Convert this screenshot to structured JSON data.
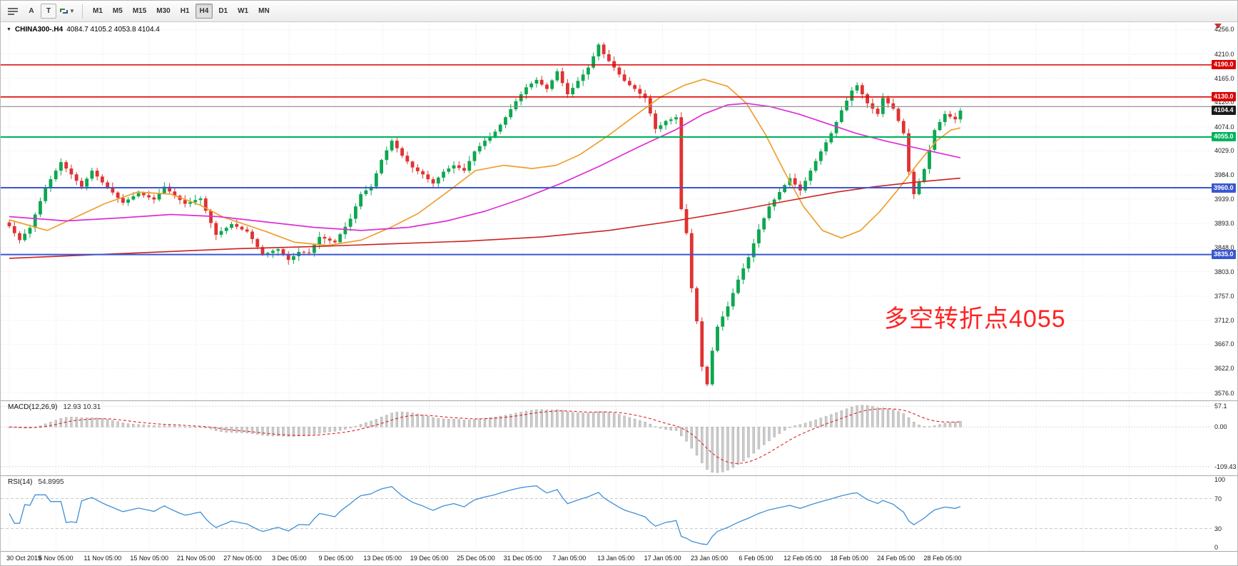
{
  "toolbar": {
    "tools": [
      {
        "label": "A"
      },
      {
        "label": "T"
      }
    ],
    "timeframes": [
      "M1",
      "M5",
      "M15",
      "M30",
      "H1",
      "H4",
      "D1",
      "W1",
      "MN"
    ],
    "active_timeframe": "H4"
  },
  "chart": {
    "symbol": "CHINA300-.H4",
    "ohlc": "4084.7 4105.2 4053.8 4104.4",
    "annotation": {
      "text": "多空转折点4055",
      "color": "#ff2222"
    },
    "price_axis": [
      "4256.0",
      "4210.0",
      "4165.0",
      "4120.0",
      "4074.0",
      "4029.0",
      "3984.0",
      "3939.0",
      "3893.0",
      "3848.0",
      "3803.0",
      "3757.0",
      "3712.0",
      "3667.0",
      "3622.0",
      "3576.0"
    ],
    "hlines": [
      {
        "price": 4190.0,
        "label": "4190.0",
        "color": "#dd0000",
        "width": 1.6
      },
      {
        "price": 4130.0,
        "label": "4130.0",
        "color": "#dd0000",
        "width": 1.6
      },
      {
        "price": 4112.0,
        "label": "",
        "color": "#8a8a8a",
        "width": 1.1
      },
      {
        "price": 4104.4,
        "label": "4104.4",
        "color": "#1a1a1a",
        "width": 0
      },
      {
        "price": 4055.0,
        "label": "4055.0",
        "color": "#00b25c",
        "width": 2.2
      },
      {
        "price": 3960.0,
        "label": "3960.0",
        "color": "#3a57d0",
        "width": 2
      },
      {
        "price": 3835.0,
        "label": "3835.0",
        "color": "#3a57d0",
        "width": 2
      }
    ]
  },
  "chart_data": {
    "type": "candlestick",
    "symbol": "CHINA300-",
    "timeframe": "H4",
    "ohlc_display": [
      4084.7,
      4105.2,
      4053.8,
      4104.4
    ],
    "ylim": [
      3576,
      4256
    ],
    "first_open": 3895,
    "closes": [
      3888,
      3875,
      3862,
      3874,
      3885,
      3910,
      3935,
      3960,
      3976,
      3992,
      4008,
      3996,
      3985,
      3973,
      3962,
      3977,
      3992,
      3981,
      3970,
      3960,
      3951,
      3941,
      3932,
      3938,
      3944,
      3950,
      3946,
      3942,
      3938,
      3950,
      3962,
      3953,
      3945,
      3937,
      3930,
      3933,
      3937,
      3940,
      3917,
      3894,
      3872,
      3879,
      3885,
      3892,
      3887,
      3882,
      3878,
      3864,
      3849,
      3835,
      3838,
      3842,
      3845,
      3835,
      3825,
      3832,
      3840,
      3839,
      3838,
      3853,
      3868,
      3865,
      3861,
      3858,
      3873,
      3887,
      3902,
      3925,
      3948,
      3955,
      3962,
      3987,
      4012,
      4030,
      4048,
      4034,
      4020,
      4009,
      3998,
      3991,
      3985,
      3976,
      3968,
      3979,
      3990,
      3996,
      4002,
      3997,
      3992,
      4010,
      4028,
      4038,
      4048,
      4056,
      4065,
      4078,
      4092,
      4107,
      4122,
      4135,
      4148,
      4155,
      4162,
      4153,
      4145,
      4161,
      4178,
      4156,
      4135,
      4147,
      4160,
      4172,
      4185,
      4206,
      4228,
      4210,
      4197,
      4185,
      4172,
      4160,
      4152,
      4145,
      4136,
      4128,
      4099,
      4070,
      4077,
      4085,
      4088,
      4092,
      3920,
      3875,
      3772,
      3710,
      3625,
      3592,
      3655,
      3700,
      3719,
      3738,
      3763,
      3788,
      3809,
      3830,
      3856,
      3882,
      3903,
      3925,
      3938,
      3952,
      3965,
      3978,
      3966,
      3955,
      3973,
      3992,
      4010,
      4028,
      4045,
      4062,
      4083,
      4105,
      4123,
      4142,
      4152,
      4135,
      4118,
      4108,
      4098,
      4128,
      4118,
      4108,
      4085,
      4062,
      3990,
      3948,
      3971,
      3995,
      4031,
      4068,
      4083,
      4098,
      4093,
      4088,
      4104.4
    ],
    "ma_lines": [
      {
        "name": "ma-fast-orange",
        "color": "#ef9f2e",
        "width": 1.7,
        "points": [
          [
            0,
            3900
          ],
          [
            0.04,
            3880
          ],
          [
            0.1,
            3930
          ],
          [
            0.135,
            3952
          ],
          [
            0.17,
            3948
          ],
          [
            0.2,
            3928
          ],
          [
            0.225,
            3905
          ],
          [
            0.27,
            3878
          ],
          [
            0.3,
            3858
          ],
          [
            0.335,
            3852
          ],
          [
            0.37,
            3862
          ],
          [
            0.4,
            3885
          ],
          [
            0.43,
            3912
          ],
          [
            0.465,
            3958
          ],
          [
            0.49,
            3992
          ],
          [
            0.52,
            4002
          ],
          [
            0.55,
            3996
          ],
          [
            0.575,
            4002
          ],
          [
            0.6,
            4022
          ],
          [
            0.63,
            4058
          ],
          [
            0.66,
            4098
          ],
          [
            0.685,
            4130
          ],
          [
            0.71,
            4152
          ],
          [
            0.73,
            4163
          ],
          [
            0.755,
            4150
          ],
          [
            0.775,
            4118
          ],
          [
            0.795,
            4060
          ],
          [
            0.815,
            3990
          ],
          [
            0.835,
            3925
          ],
          [
            0.855,
            3880
          ],
          [
            0.875,
            3866
          ],
          [
            0.895,
            3880
          ],
          [
            0.915,
            3915
          ],
          [
            0.935,
            3958
          ],
          [
            0.955,
            4005
          ],
          [
            0.975,
            4048
          ],
          [
            0.99,
            4068
          ],
          [
            1,
            4072
          ]
        ]
      },
      {
        "name": "ma-medium-magenta",
        "color": "#dd2ed6",
        "width": 1.7,
        "points": [
          [
            0,
            3906
          ],
          [
            0.06,
            3898
          ],
          [
            0.12,
            3904
          ],
          [
            0.17,
            3910
          ],
          [
            0.22,
            3906
          ],
          [
            0.27,
            3896
          ],
          [
            0.32,
            3886
          ],
          [
            0.37,
            3880
          ],
          [
            0.42,
            3886
          ],
          [
            0.46,
            3898
          ],
          [
            0.5,
            3916
          ],
          [
            0.54,
            3940
          ],
          [
            0.58,
            3968
          ],
          [
            0.62,
            4000
          ],
          [
            0.66,
            4035
          ],
          [
            0.7,
            4068
          ],
          [
            0.73,
            4098
          ],
          [
            0.755,
            4115
          ],
          [
            0.775,
            4118
          ],
          [
            0.8,
            4112
          ],
          [
            0.83,
            4098
          ],
          [
            0.86,
            4080
          ],
          [
            0.89,
            4062
          ],
          [
            0.92,
            4048
          ],
          [
            0.95,
            4036
          ],
          [
            0.98,
            4024
          ],
          [
            1,
            4016
          ]
        ]
      },
      {
        "name": "ma-slow-red",
        "color": "#cc2222",
        "width": 1.6,
        "points": [
          [
            0,
            3828
          ],
          [
            0.08,
            3834
          ],
          [
            0.16,
            3840
          ],
          [
            0.24,
            3846
          ],
          [
            0.32,
            3850
          ],
          [
            0.4,
            3855
          ],
          [
            0.48,
            3860
          ],
          [
            0.56,
            3868
          ],
          [
            0.63,
            3880
          ],
          [
            0.7,
            3898
          ],
          [
            0.76,
            3916
          ],
          [
            0.82,
            3936
          ],
          [
            0.87,
            3952
          ],
          [
            0.91,
            3962
          ],
          [
            0.95,
            3970
          ],
          [
            1,
            3978
          ]
        ]
      }
    ]
  },
  "macd": {
    "label": "MACD(12,26,9)",
    "values": "12.93 10.31",
    "fast": 12,
    "slow": 26,
    "signal": 9,
    "axis_values": [
      57.1,
      0,
      -109.43
    ],
    "axis_labels": [
      "57.1",
      "0.00",
      "-109.43"
    ],
    "histogram_color": "#cbcbcb",
    "histogram_stroke": "#9f9f9f",
    "signal_color": "#dd2222"
  },
  "rsi": {
    "label": "RSI(14)",
    "value": "54.8995",
    "period": 14,
    "levels": [
      70,
      30
    ],
    "axis_labels": [
      "100",
      "70",
      "30",
      "0"
    ],
    "line_color": "#3e8fd8"
  },
  "time_axis": [
    "30 Oct 2019",
    "5 Nov 05:00",
    "11 Nov 05:00",
    "15 Nov 05:00",
    "21 Nov 05:00",
    "27 Nov 05:00",
    "3 Dec 05:00",
    "9 Dec 05:00",
    "13 Dec 05:00",
    "19 Dec 05:00",
    "25 Dec 05:00",
    "31 Dec 05:00",
    "7 Jan 05:00",
    "13 Jan 05:00",
    "17 Jan 05:00",
    "23 Jan 05:00",
    "6 Feb 05:00",
    "12 Feb 05:00",
    "18 Feb 05:00",
    "24 Feb 05:00",
    "28 Feb 05:00"
  ],
  "colors": {
    "up": "#0da750",
    "down": "#e03232",
    "grid": "#e6e6e6"
  }
}
